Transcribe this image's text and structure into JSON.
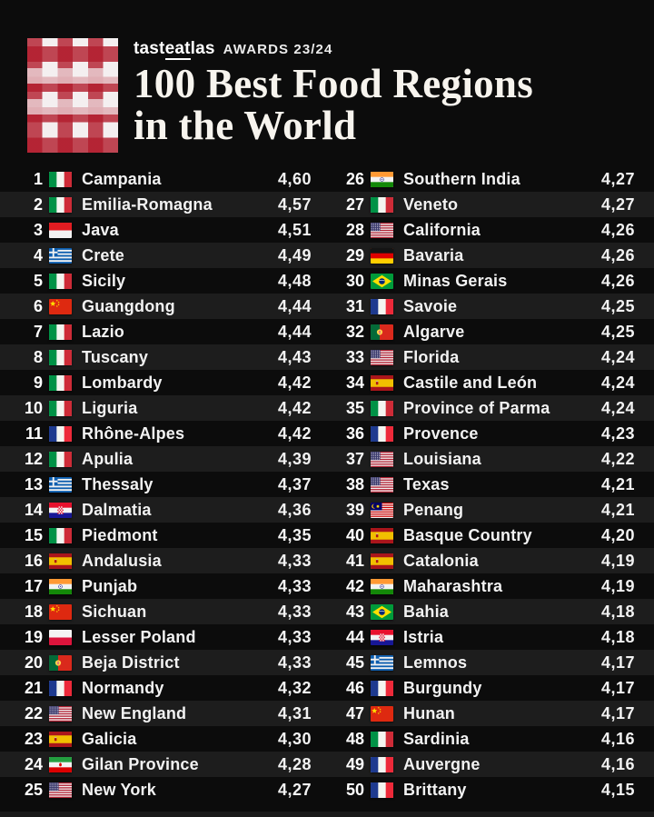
{
  "header": {
    "brand_prefix": "tast",
    "brand_mid": "eat",
    "brand_suffix": "las",
    "awards": "AWARDS 23/24",
    "title_line1": "100 Best Food Regions",
    "title_line2": "in the World"
  },
  "colors": {
    "background": "#0c0c0c",
    "row_stripe": "#1d1d1d",
    "text": "#f2f2f2",
    "brand_red": "#b21c2c"
  },
  "list": {
    "rows": [
      {
        "rank": "1",
        "flag": "italy",
        "name": "Campania",
        "score": "4,60"
      },
      {
        "rank": "2",
        "flag": "italy",
        "name": "Emilia-Romagna",
        "score": "4,57"
      },
      {
        "rank": "3",
        "flag": "indonesia",
        "name": "Java",
        "score": "4,51"
      },
      {
        "rank": "4",
        "flag": "greece",
        "name": "Crete",
        "score": "4,49"
      },
      {
        "rank": "5",
        "flag": "italy",
        "name": "Sicily",
        "score": "4,48"
      },
      {
        "rank": "6",
        "flag": "china",
        "name": "Guangdong",
        "score": "4,44"
      },
      {
        "rank": "7",
        "flag": "italy",
        "name": "Lazio",
        "score": "4,44"
      },
      {
        "rank": "8",
        "flag": "italy",
        "name": "Tuscany",
        "score": "4,43"
      },
      {
        "rank": "9",
        "flag": "italy",
        "name": "Lombardy",
        "score": "4,42"
      },
      {
        "rank": "10",
        "flag": "italy",
        "name": "Liguria",
        "score": "4,42"
      },
      {
        "rank": "11",
        "flag": "france",
        "name": "Rhône-Alpes",
        "score": "4,42"
      },
      {
        "rank": "12",
        "flag": "italy",
        "name": "Apulia",
        "score": "4,39"
      },
      {
        "rank": "13",
        "flag": "greece",
        "name": "Thessaly",
        "score": "4,37"
      },
      {
        "rank": "14",
        "flag": "croatia",
        "name": "Dalmatia",
        "score": "4,36"
      },
      {
        "rank": "15",
        "flag": "italy",
        "name": "Piedmont",
        "score": "4,35"
      },
      {
        "rank": "16",
        "flag": "spain",
        "name": "Andalusia",
        "score": "4,33"
      },
      {
        "rank": "17",
        "flag": "india",
        "name": "Punjab",
        "score": "4,33"
      },
      {
        "rank": "18",
        "flag": "china",
        "name": "Sichuan",
        "score": "4,33"
      },
      {
        "rank": "19",
        "flag": "poland",
        "name": "Lesser Poland",
        "score": "4,33"
      },
      {
        "rank": "20",
        "flag": "portugal",
        "name": "Beja District",
        "score": "4,33"
      },
      {
        "rank": "21",
        "flag": "france",
        "name": "Normandy",
        "score": "4,32"
      },
      {
        "rank": "22",
        "flag": "usa",
        "name": "New England",
        "score": "4,31"
      },
      {
        "rank": "23",
        "flag": "spain",
        "name": "Galicia",
        "score": "4,30"
      },
      {
        "rank": "24",
        "flag": "iran",
        "name": "Gilan Province",
        "score": "4,28"
      },
      {
        "rank": "25",
        "flag": "usa",
        "name": "New York",
        "score": "4,27"
      },
      {
        "rank": "26",
        "flag": "india",
        "name": "Southern India",
        "score": "4,27"
      },
      {
        "rank": "27",
        "flag": "italy",
        "name": "Veneto",
        "score": "4,27"
      },
      {
        "rank": "28",
        "flag": "usa",
        "name": "California",
        "score": "4,26"
      },
      {
        "rank": "29",
        "flag": "germany",
        "name": "Bavaria",
        "score": "4,26"
      },
      {
        "rank": "30",
        "flag": "brazil",
        "name": "Minas Gerais",
        "score": "4,26"
      },
      {
        "rank": "31",
        "flag": "france",
        "name": "Savoie",
        "score": "4,25"
      },
      {
        "rank": "32",
        "flag": "portugal",
        "name": "Algarve",
        "score": "4,25"
      },
      {
        "rank": "33",
        "flag": "usa",
        "name": "Florida",
        "score": "4,24"
      },
      {
        "rank": "34",
        "flag": "spain",
        "name": "Castile and León",
        "score": "4,24"
      },
      {
        "rank": "35",
        "flag": "italy",
        "name": "Province of Parma",
        "score": "4,24"
      },
      {
        "rank": "36",
        "flag": "france",
        "name": "Provence",
        "score": "4,23"
      },
      {
        "rank": "37",
        "flag": "usa",
        "name": "Louisiana",
        "score": "4,22"
      },
      {
        "rank": "38",
        "flag": "usa",
        "name": "Texas",
        "score": "4,21"
      },
      {
        "rank": "39",
        "flag": "malaysia",
        "name": "Penang",
        "score": "4,21"
      },
      {
        "rank": "40",
        "flag": "spain",
        "name": "Basque Country",
        "score": "4,20"
      },
      {
        "rank": "41",
        "flag": "spain",
        "name": "Catalonia",
        "score": "4,19"
      },
      {
        "rank": "42",
        "flag": "india",
        "name": "Maharashtra",
        "score": "4,19"
      },
      {
        "rank": "43",
        "flag": "brazil",
        "name": "Bahia",
        "score": "4,18"
      },
      {
        "rank": "44",
        "flag": "croatia",
        "name": "Istria",
        "score": "4,18"
      },
      {
        "rank": "45",
        "flag": "greece",
        "name": "Lemnos",
        "score": "4,17"
      },
      {
        "rank": "46",
        "flag": "france",
        "name": "Burgundy",
        "score": "4,17"
      },
      {
        "rank": "47",
        "flag": "china",
        "name": "Hunan",
        "score": "4,17"
      },
      {
        "rank": "48",
        "flag": "italy",
        "name": "Sardinia",
        "score": "4,16"
      },
      {
        "rank": "49",
        "flag": "france",
        "name": "Auvergne",
        "score": "4,16"
      },
      {
        "rank": "50",
        "flag": "france",
        "name": "Brittany",
        "score": "4,15"
      }
    ]
  }
}
